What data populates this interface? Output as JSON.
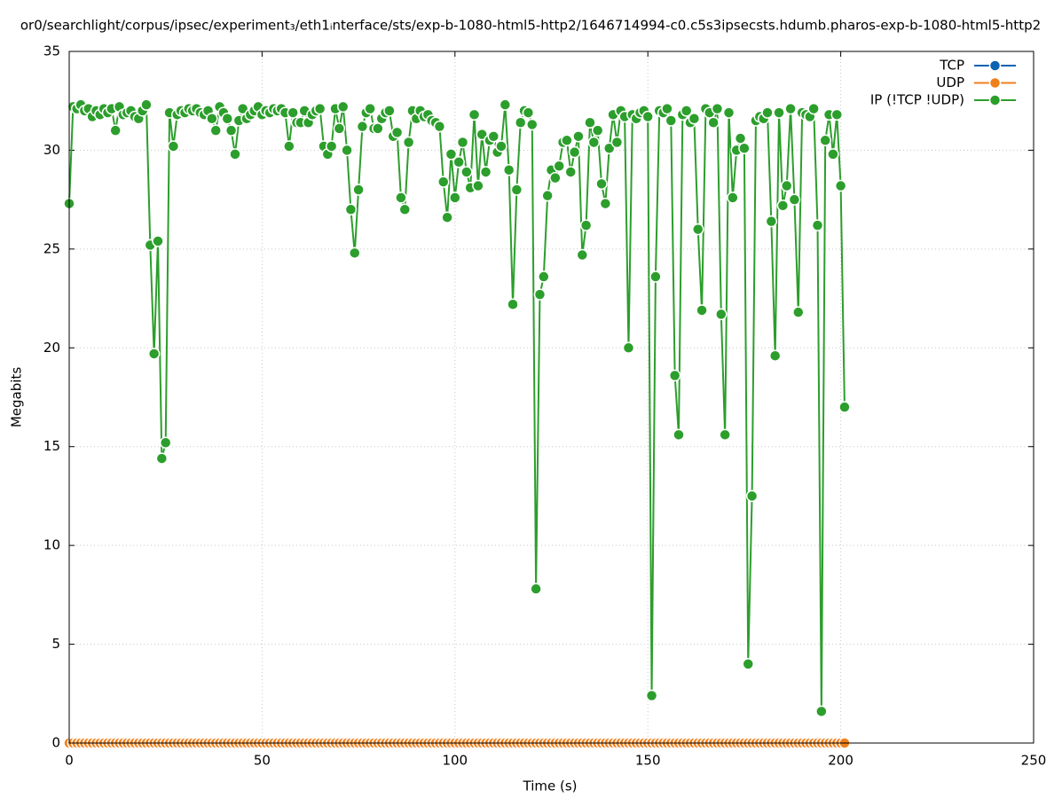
{
  "chart_data": {
    "type": "line",
    "title": "or0/searchlight/corpus/ipsec/experiment₃/eth1ᵢnterface/sts/exp-b-1080-html5-http2/1646714994-c0.c5s3ipsecsts.hdumb.pharos-exp-b-1080-html5-http2",
    "xlabel": "Time (s)",
    "ylabel": "Megabits",
    "xlim": [
      0,
      250
    ],
    "xticks": [
      0,
      50,
      100,
      150,
      200,
      250
    ],
    "ylim": [
      0,
      35
    ],
    "yticks": [
      0,
      5,
      10,
      15,
      20,
      25,
      30,
      35
    ],
    "grid": true,
    "legend": "top-right",
    "x": [
      0,
      1,
      2,
      3,
      4,
      5,
      6,
      7,
      8,
      9,
      10,
      11,
      12,
      13,
      14,
      15,
      16,
      17,
      18,
      19,
      20,
      21,
      22,
      23,
      24,
      25,
      26,
      27,
      28,
      29,
      30,
      31,
      32,
      33,
      34,
      35,
      36,
      37,
      38,
      39,
      40,
      41,
      42,
      43,
      44,
      45,
      46,
      47,
      48,
      49,
      50,
      51,
      52,
      53,
      54,
      55,
      56,
      57,
      58,
      59,
      60,
      61,
      62,
      63,
      64,
      65,
      66,
      67,
      68,
      69,
      70,
      71,
      72,
      73,
      74,
      75,
      76,
      77,
      78,
      79,
      80,
      81,
      82,
      83,
      84,
      85,
      86,
      87,
      88,
      89,
      90,
      91,
      92,
      93,
      94,
      95,
      96,
      97,
      98,
      99,
      100,
      101,
      102,
      103,
      104,
      105,
      106,
      107,
      108,
      109,
      110,
      111,
      112,
      113,
      114,
      115,
      116,
      117,
      118,
      119,
      120,
      121,
      122,
      123,
      124,
      125,
      126,
      127,
      128,
      129,
      130,
      131,
      132,
      133,
      134,
      135,
      136,
      137,
      138,
      139,
      140,
      141,
      142,
      143,
      144,
      145,
      146,
      147,
      148,
      149,
      150,
      151,
      152,
      153,
      154,
      155,
      156,
      157,
      158,
      159,
      160,
      161,
      162,
      163,
      164,
      165,
      166,
      167,
      168,
      169,
      170,
      171,
      172,
      173,
      174,
      175,
      176,
      177,
      178,
      179,
      180,
      181,
      182,
      183,
      184,
      185,
      186,
      187,
      188,
      189,
      190,
      191,
      192,
      193,
      194,
      195,
      196,
      197,
      198,
      199,
      200,
      201
    ],
    "series": [
      {
        "name": "TCP",
        "color": "#0a63b0",
        "values": [
          0,
          0,
          0,
          0,
          0,
          0,
          0,
          0,
          0,
          0,
          0,
          0,
          0,
          0,
          0,
          0,
          0,
          0,
          0,
          0,
          0,
          0,
          0,
          0,
          0,
          0,
          0,
          0,
          0,
          0,
          0,
          0,
          0,
          0,
          0,
          0,
          0,
          0,
          0,
          0,
          0,
          0,
          0,
          0,
          0,
          0,
          0,
          0,
          0,
          0,
          0,
          0,
          0,
          0,
          0,
          0,
          0,
          0,
          0,
          0,
          0,
          0,
          0,
          0,
          0,
          0,
          0,
          0,
          0,
          0,
          0,
          0,
          0,
          0,
          0,
          0,
          0,
          0,
          0,
          0,
          0,
          0,
          0,
          0,
          0,
          0,
          0,
          0,
          0,
          0,
          0,
          0,
          0,
          0,
          0,
          0,
          0,
          0,
          0,
          0,
          0,
          0,
          0,
          0,
          0,
          0,
          0,
          0,
          0,
          0,
          0,
          0,
          0,
          0,
          0,
          0,
          0,
          0,
          0,
          0,
          0,
          0,
          0,
          0,
          0,
          0,
          0,
          0,
          0,
          0,
          0,
          0,
          0,
          0,
          0,
          0,
          0,
          0,
          0,
          0,
          0,
          0,
          0,
          0,
          0,
          0,
          0,
          0,
          0,
          0,
          0,
          0,
          0,
          0,
          0,
          0,
          0,
          0,
          0,
          0,
          0,
          0,
          0,
          0,
          0,
          0,
          0,
          0,
          0,
          0,
          0,
          0,
          0,
          0,
          0,
          0,
          0,
          0,
          0,
          0,
          0,
          0,
          0,
          0,
          0,
          0,
          0,
          0,
          0,
          0,
          0,
          0,
          0,
          0,
          0,
          0,
          0,
          0,
          0,
          0,
          0,
          0
        ]
      },
      {
        "name": "UDP",
        "color": "#f07f1a",
        "values": [
          0,
          0,
          0,
          0,
          0,
          0,
          0,
          0,
          0,
          0,
          0,
          0,
          0,
          0,
          0,
          0,
          0,
          0,
          0,
          0,
          0,
          0,
          0,
          0,
          0,
          0,
          0,
          0,
          0,
          0,
          0,
          0,
          0,
          0,
          0,
          0,
          0,
          0,
          0,
          0,
          0,
          0,
          0,
          0,
          0,
          0,
          0,
          0,
          0,
          0,
          0,
          0,
          0,
          0,
          0,
          0,
          0,
          0,
          0,
          0,
          0,
          0,
          0,
          0,
          0,
          0,
          0,
          0,
          0,
          0,
          0,
          0,
          0,
          0,
          0,
          0,
          0,
          0,
          0,
          0,
          0,
          0,
          0,
          0,
          0,
          0,
          0,
          0,
          0,
          0,
          0,
          0,
          0,
          0,
          0,
          0,
          0,
          0,
          0,
          0,
          0,
          0,
          0,
          0,
          0,
          0,
          0,
          0,
          0,
          0,
          0,
          0,
          0,
          0,
          0,
          0,
          0,
          0,
          0,
          0,
          0,
          0,
          0,
          0,
          0,
          0,
          0,
          0,
          0,
          0,
          0,
          0,
          0,
          0,
          0,
          0,
          0,
          0,
          0,
          0,
          0,
          0,
          0,
          0,
          0,
          0,
          0,
          0,
          0,
          0,
          0,
          0,
          0,
          0,
          0,
          0,
          0,
          0,
          0,
          0,
          0,
          0,
          0,
          0,
          0,
          0,
          0,
          0,
          0,
          0,
          0,
          0,
          0,
          0,
          0,
          0,
          0,
          0,
          0,
          0,
          0,
          0,
          0,
          0,
          0,
          0,
          0,
          0,
          0,
          0,
          0,
          0,
          0,
          0,
          0,
          0,
          0,
          0,
          0,
          0,
          0,
          0
        ]
      },
      {
        "name": "IP (!TCP  !UDP)",
        "color": "#2c9e2c",
        "values": [
          27.3,
          32.2,
          32.1,
          32.3,
          32.0,
          32.1,
          31.7,
          32.0,
          31.8,
          32.1,
          31.9,
          32.1,
          31.0,
          32.2,
          31.8,
          31.9,
          32.0,
          31.7,
          31.6,
          32.0,
          32.3,
          25.2,
          19.7,
          25.4,
          14.4,
          15.2,
          31.9,
          30.2,
          31.8,
          32.0,
          31.9,
          32.1,
          32.0,
          32.1,
          31.9,
          31.8,
          32.0,
          31.6,
          31.0,
          32.2,
          31.9,
          31.6,
          31.0,
          29.8,
          31.5,
          32.1,
          31.6,
          31.8,
          32.0,
          32.2,
          31.8,
          32.0,
          31.9,
          32.1,
          32.0,
          32.1,
          31.9,
          30.2,
          31.9,
          31.4,
          31.4,
          32.0,
          31.4,
          31.8,
          32.0,
          32.1,
          30.2,
          29.8,
          30.2,
          32.1,
          31.1,
          32.2,
          30.0,
          27.0,
          24.8,
          28.0,
          31.2,
          31.9,
          32.1,
          31.1,
          31.1,
          31.6,
          31.9,
          32.0,
          30.7,
          30.9,
          27.6,
          27.0,
          30.4,
          32.0,
          31.6,
          32.0,
          31.7,
          31.8,
          31.5,
          31.4,
          31.2,
          28.4,
          26.6,
          29.8,
          27.6,
          29.4,
          30.4,
          28.9,
          28.1,
          31.8,
          28.2,
          30.8,
          28.9,
          30.5,
          30.7,
          29.9,
          30.2,
          32.3,
          29.0,
          22.2,
          28.0,
          31.4,
          32.0,
          31.9,
          31.3,
          7.8,
          22.7,
          23.6,
          27.7,
          29.0,
          28.6,
          29.2,
          30.4,
          30.5,
          28.9,
          29.9,
          30.7,
          24.7,
          26.2,
          31.4,
          30.4,
          31.0,
          28.3,
          27.3,
          30.1,
          31.8,
          30.4,
          32.0,
          31.7,
          20.0,
          31.8,
          31.6,
          31.9,
          32.0,
          31.7,
          2.4,
          23.6,
          32.0,
          31.9,
          32.1,
          31.5,
          18.6,
          15.6,
          31.8,
          32.0,
          31.4,
          31.6,
          26.0,
          21.9,
          32.1,
          31.9,
          31.4,
          32.1,
          21.7,
          15.6,
          31.9,
          27.6,
          30.0,
          30.6,
          30.1,
          4.0,
          12.5,
          31.5,
          31.7,
          31.6,
          31.9,
          26.4,
          19.6,
          31.9,
          27.2,
          28.2,
          32.1,
          27.5,
          21.8,
          31.9,
          31.8,
          31.7,
          32.1,
          26.2,
          1.6,
          30.5,
          31.8,
          29.8,
          31.8,
          28.2,
          17.0
        ]
      }
    ]
  }
}
